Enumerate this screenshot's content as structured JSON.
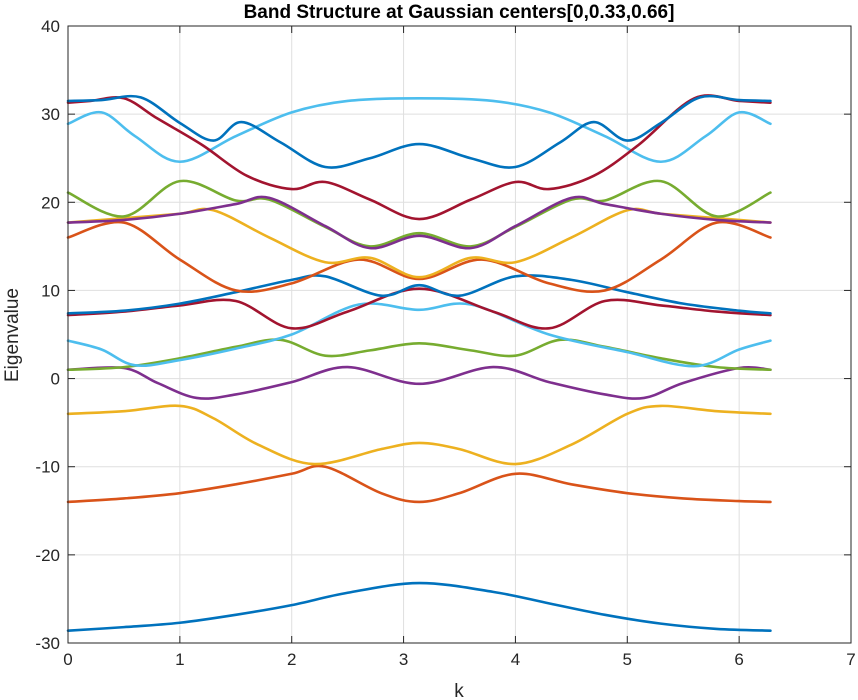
{
  "chart_data": {
    "type": "line",
    "title": "Band Structure at Gaussian centers[0,0.33,0.66]",
    "xlabel": "k",
    "ylabel": "Eigenvalue",
    "xlim": [
      0,
      7
    ],
    "ylim": [
      -30,
      40
    ],
    "xticks": [
      0,
      1,
      2,
      3,
      4,
      5,
      6,
      7
    ],
    "xtick_labels": [
      "0",
      "1",
      "2",
      "3",
      "4",
      "5",
      "6",
      "7"
    ],
    "yticks": [
      -30,
      -20,
      -10,
      0,
      10,
      20,
      30,
      40
    ],
    "ytick_labels": [
      "-30",
      "-20",
      "-10",
      "0",
      "10",
      "20",
      "30",
      "40"
    ],
    "grid": true,
    "series": [
      {
        "color": "#0072BD",
        "x": [
          0,
          0.5,
          1,
          1.5,
          2,
          2.5,
          3.14,
          3.8,
          4.3,
          4.8,
          5.3,
          5.8,
          6.28
        ],
        "y": [
          -28.6,
          -28.2,
          -27.7,
          -26.8,
          -25.7,
          -24.3,
          -23.2,
          -24.2,
          -25.5,
          -26.8,
          -27.8,
          -28.4,
          -28.6
        ]
      },
      {
        "color": "#D95319",
        "x": [
          0,
          0.5,
          1,
          1.5,
          2,
          2.3,
          2.8,
          3.14,
          3.5,
          4,
          4.5,
          5,
          5.5,
          6,
          6.28
        ],
        "y": [
          -14,
          -13.6,
          -13,
          -12,
          -10.8,
          -10,
          -13,
          -14,
          -13,
          -10.8,
          -12,
          -13,
          -13.6,
          -13.9,
          -14
        ]
      },
      {
        "color": "#EDB120",
        "x": [
          0,
          0.5,
          1,
          1.3,
          1.7,
          2.2,
          2.8,
          3.14,
          3.5,
          4,
          4.5,
          5,
          5.3,
          5.8,
          6.28
        ],
        "y": [
          -4,
          -3.7,
          -3.1,
          -4.5,
          -7.5,
          -9.7,
          -8,
          -7.3,
          -8,
          -9.7,
          -7.5,
          -4,
          -3.1,
          -3.7,
          -4
        ]
      },
      {
        "color": "#7E2F8E",
        "x": [
          0,
          0.5,
          0.8,
          1.15,
          1.5,
          2,
          2.5,
          3.14,
          3.8,
          4.3,
          4.8,
          5.15,
          5.5,
          6,
          6.28
        ],
        "y": [
          1,
          1.2,
          -0.5,
          -2.2,
          -1.8,
          -0.4,
          1.3,
          -0.6,
          1.3,
          -0.4,
          -1.8,
          -2.2,
          -0.5,
          1.2,
          1
        ]
      },
      {
        "color": "#77AC30",
        "x": [
          0,
          0.5,
          1,
          1.5,
          1.9,
          2.3,
          2.7,
          3.14,
          3.6,
          4,
          4.4,
          4.8,
          5.3,
          5.8,
          6.28
        ],
        "y": [
          1,
          1.3,
          2.3,
          3.6,
          4.4,
          2.6,
          3.2,
          4.0,
          3.2,
          2.6,
          4.4,
          3.6,
          2.3,
          1.3,
          1
        ]
      },
      {
        "color": "#4DBEEE",
        "x": [
          0,
          0.3,
          0.6,
          1,
          1.5,
          2,
          2.6,
          3.14,
          3.6,
          4.3,
          5,
          5.6,
          6,
          6.28
        ],
        "y": [
          4.3,
          3.3,
          1.5,
          2.1,
          3.4,
          5.0,
          8.4,
          7.8,
          8.4,
          5.0,
          3.0,
          1.4,
          3.3,
          4.3
        ]
      },
      {
        "color": "#A2142F",
        "x": [
          0,
          0.5,
          1,
          1.5,
          2,
          2.5,
          3.14,
          3.8,
          4.3,
          4.8,
          5.3,
          5.8,
          6.28
        ],
        "y": [
          7.2,
          7.6,
          8.3,
          8.8,
          5.7,
          7.6,
          10.2,
          7.6,
          5.7,
          8.8,
          8.3,
          7.6,
          7.2
        ]
      },
      {
        "color": "#0072BD",
        "x": [
          0,
          0.5,
          1,
          1.5,
          2,
          2.3,
          2.8,
          3.14,
          3.5,
          4,
          4.5,
          5,
          5.5,
          6,
          6.28
        ],
        "y": [
          7.4,
          7.7,
          8.5,
          9.8,
          11.2,
          11.6,
          9.4,
          10.6,
          9.4,
          11.6,
          11.2,
          9.8,
          8.5,
          7.7,
          7.4
        ]
      },
      {
        "color": "#D95319",
        "x": [
          0,
          0.5,
          1,
          1.5,
          2,
          2.6,
          3.14,
          3.7,
          4.3,
          4.8,
          5.3,
          5.8,
          6.28
        ],
        "y": [
          16,
          17.7,
          13.5,
          10,
          10.8,
          13.5,
          11.3,
          13.5,
          10.8,
          10,
          13.5,
          17.7,
          16
        ]
      },
      {
        "color": "#EDB120",
        "x": [
          0,
          0.5,
          1,
          1.3,
          1.8,
          2.3,
          2.7,
          3.14,
          3.6,
          4,
          4.5,
          5,
          5.3,
          5.8,
          6.28
        ],
        "y": [
          17.7,
          18.2,
          18.7,
          19.1,
          16.0,
          13.2,
          13.7,
          11.5,
          13.7,
          13.2,
          16.0,
          19.1,
          18.7,
          18.2,
          17.7
        ]
      },
      {
        "color": "#77AC30",
        "x": [
          0,
          0.5,
          1,
          1.5,
          1.8,
          2.3,
          2.7,
          3.14,
          3.6,
          4,
          4.5,
          4.8,
          5.3,
          5.8,
          6.28
        ],
        "y": [
          21.1,
          18.4,
          22.4,
          20.2,
          20.3,
          17.2,
          15.0,
          16.5,
          15.0,
          17.2,
          20.3,
          20.2,
          22.4,
          18.4,
          21.1
        ]
      },
      {
        "color": "#7E2F8E",
        "x": [
          0,
          0.5,
          1,
          1.5,
          1.8,
          2.3,
          2.7,
          3.14,
          3.6,
          4,
          4.5,
          4.8,
          5.3,
          5.8,
          6.28
        ],
        "y": [
          17.7,
          18.0,
          18.7,
          19.8,
          20.5,
          17.3,
          14.8,
          16.2,
          14.8,
          17.3,
          20.5,
          19.8,
          18.7,
          18.0,
          17.7
        ]
      },
      {
        "color": "#4DBEEE",
        "x": [
          0,
          0.3,
          0.6,
          1,
          1.5,
          2,
          2.5,
          3.14,
          3.8,
          4.3,
          4.8,
          5.3,
          5.7,
          6,
          6.28
        ],
        "y": [
          28.9,
          30.2,
          27.5,
          24.6,
          27.5,
          30.2,
          31.5,
          31.8,
          31.5,
          30.2,
          27.5,
          24.6,
          27.5,
          30.2,
          28.9
        ]
      },
      {
        "color": "#A2142F",
        "x": [
          0,
          0.2,
          0.5,
          0.8,
          1.2,
          1.6,
          2,
          2.3,
          2.7,
          3.14,
          3.6,
          4,
          4.3,
          4.7,
          5.1,
          5.6,
          6,
          6.28
        ],
        "y": [
          31.3,
          31.5,
          31.8,
          29.5,
          26.5,
          23.0,
          21.5,
          22.3,
          20.3,
          18.1,
          20.3,
          22.3,
          21.5,
          23.0,
          26.5,
          31.8,
          31.5,
          31.3
        ]
      },
      {
        "color": "#0072BD",
        "x": [
          0,
          0.3,
          0.65,
          1,
          1.3,
          1.55,
          1.9,
          2.3,
          2.7,
          3.14,
          3.6,
          4,
          4.4,
          4.7,
          5,
          5.3,
          5.65,
          6,
          6.28
        ],
        "y": [
          31.5,
          31.6,
          31.9,
          29.0,
          27.0,
          29.1,
          26.8,
          24.0,
          25.0,
          26.6,
          25.0,
          24.0,
          26.8,
          29.1,
          27.0,
          29.0,
          31.9,
          31.6,
          31.5
        ]
      }
    ]
  }
}
